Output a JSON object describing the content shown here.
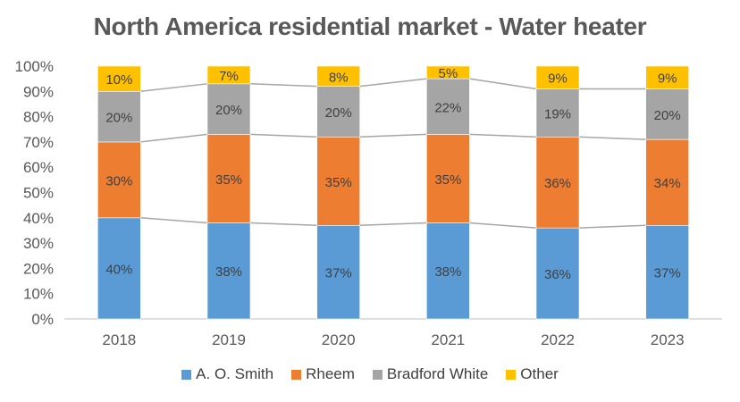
{
  "chart_data": {
    "type": "bar",
    "stacked": true,
    "percent": true,
    "title": "North America residential market - Water heater",
    "categories": [
      "2018",
      "2019",
      "2020",
      "2021",
      "2022",
      "2023"
    ],
    "series": [
      {
        "name": "A. O. Smith",
        "color": "#5B9BD5",
        "values": [
          40,
          38,
          37,
          38,
          36,
          37
        ]
      },
      {
        "name": "Rheem",
        "color": "#ED7D31",
        "values": [
          30,
          35,
          35,
          35,
          36,
          34
        ]
      },
      {
        "name": "Bradford White",
        "color": "#A5A5A5",
        "values": [
          20,
          20,
          20,
          22,
          19,
          20
        ]
      },
      {
        "name": "Other",
        "color": "#FFC000",
        "values": [
          10,
          7,
          8,
          5,
          9,
          9
        ]
      }
    ],
    "data_labels": [
      [
        "40%",
        "38%",
        "37%",
        "38%",
        "36%",
        "37%"
      ],
      [
        "30%",
        "35%",
        "35%",
        "35%",
        "36%",
        "34%"
      ],
      [
        "20%",
        "20%",
        "20%",
        "22%",
        "19%",
        "20%"
      ],
      [
        "10%",
        "7%",
        "8%",
        "5%",
        "9%",
        "9%"
      ]
    ],
    "y_ticks": [
      "0%",
      "10%",
      "20%",
      "30%",
      "40%",
      "50%",
      "60%",
      "70%",
      "80%",
      "90%",
      "100%"
    ],
    "ylim": [
      0,
      100
    ],
    "series_lines": true,
    "grid": false,
    "legend_position": "bottom"
  }
}
